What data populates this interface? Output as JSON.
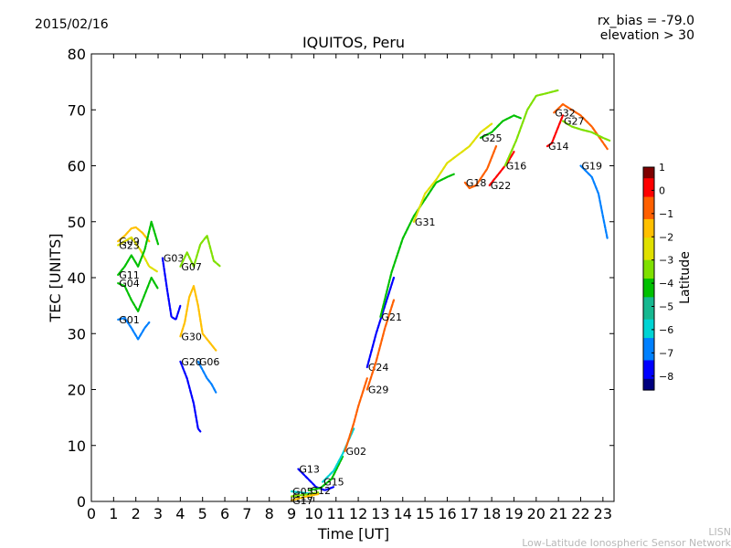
{
  "header": {
    "date": "2015/02/16",
    "rx_bias": "rx_bias = -79.0",
    "elevation": "elevation > 30"
  },
  "footer": {
    "credit_short": "LISN",
    "credit_long": "Low-Latitude Ionospheric Sensor Network"
  },
  "chart_data": {
    "type": "scatter",
    "title": "IQUITOS, Peru",
    "xlabel": "Time [UT]",
    "ylabel": "TEC [UNITS]",
    "xlim": [
      0,
      23.5
    ],
    "ylim": [
      0,
      80
    ],
    "xticks": [
      0,
      1,
      2,
      3,
      4,
      5,
      6,
      7,
      8,
      9,
      10,
      11,
      12,
      13,
      14,
      15,
      16,
      17,
      18,
      19,
      20,
      21,
      22,
      23
    ],
    "yticks": [
      0,
      10,
      20,
      30,
      40,
      50,
      60,
      70,
      80
    ],
    "grid": false,
    "colorbar": {
      "label": "Latitude",
      "range": [
        -8.6,
        1.0
      ],
      "ticks": [
        1,
        0,
        -1,
        -2,
        -3,
        -4,
        -5,
        -6,
        -7,
        -8
      ],
      "colormap": [
        "#00007f",
        "#0000ff",
        "#0080ff",
        "#00d4d4",
        "#17b890",
        "#00c000",
        "#7fe000",
        "#e0e000",
        "#ffc000",
        "#ff6000",
        "#ff0000",
        "#7f0000"
      ]
    },
    "series": [
      {
        "name": "G09",
        "lat": -2.0,
        "points": [
          [
            1.2,
            46.5
          ],
          [
            1.5,
            47.5
          ],
          [
            1.8,
            48.8
          ],
          [
            2.0,
            49.0
          ],
          [
            2.3,
            48.0
          ],
          [
            2.6,
            46.5
          ]
        ]
      },
      {
        "name": "G23",
        "lat": -2.6,
        "points": [
          [
            1.2,
            45.8
          ],
          [
            1.5,
            46.5
          ],
          [
            1.8,
            47.2
          ],
          [
            2.2,
            45.0
          ],
          [
            2.6,
            42.0
          ],
          [
            3.0,
            41.0
          ]
        ]
      },
      {
        "name": "G11",
        "lat": -4.0,
        "points": [
          [
            1.2,
            40.5
          ],
          [
            1.5,
            42.0
          ],
          [
            1.8,
            44.0
          ],
          [
            2.1,
            42.0
          ],
          [
            2.4,
            45.0
          ],
          [
            2.7,
            50.0
          ],
          [
            3.0,
            46.0
          ]
        ]
      },
      {
        "name": "G04",
        "lat": -4.6,
        "points": [
          [
            1.2,
            39.0
          ],
          [
            1.5,
            38.5
          ],
          [
            1.8,
            36.0
          ],
          [
            2.1,
            34.0
          ],
          [
            2.4,
            37.0
          ],
          [
            2.7,
            40.0
          ],
          [
            3.0,
            38.0
          ]
        ]
      },
      {
        "name": "G01",
        "lat": -6.6,
        "points": [
          [
            1.2,
            32.5
          ],
          [
            1.5,
            32.8
          ],
          [
            1.8,
            31.0
          ],
          [
            2.1,
            29.0
          ],
          [
            2.4,
            31.0
          ],
          [
            2.6,
            32.0
          ]
        ]
      },
      {
        "name": "G03",
        "lat": -7.4,
        "points": [
          [
            3.2,
            43.5
          ],
          [
            3.4,
            38.0
          ],
          [
            3.6,
            33.0
          ],
          [
            3.8,
            32.5
          ],
          [
            4.0,
            35.0
          ]
        ]
      },
      {
        "name": "G07",
        "lat": -3.4,
        "points": [
          [
            4.0,
            42.0
          ],
          [
            4.3,
            44.5
          ],
          [
            4.6,
            42.0
          ],
          [
            4.9,
            46.0
          ],
          [
            5.2,
            47.5
          ],
          [
            5.5,
            43.0
          ],
          [
            5.8,
            42.0
          ]
        ]
      },
      {
        "name": "G30",
        "lat": -2.0,
        "points": [
          [
            4.0,
            29.5
          ],
          [
            4.2,
            32.0
          ],
          [
            4.4,
            36.5
          ],
          [
            4.6,
            38.5
          ],
          [
            4.8,
            35.0
          ],
          [
            5.0,
            30.0
          ],
          [
            5.3,
            28.5
          ],
          [
            5.6,
            27.0
          ]
        ]
      },
      {
        "name": "G06",
        "lat": -6.5,
        "points": [
          [
            4.8,
            25.0
          ],
          [
            5.0,
            23.5
          ],
          [
            5.2,
            22.0
          ],
          [
            5.4,
            21.0
          ],
          [
            5.6,
            19.5
          ]
        ]
      },
      {
        "name": "G20",
        "lat": -8.0,
        "points": [
          [
            4.0,
            25.0
          ],
          [
            4.3,
            22.0
          ],
          [
            4.6,
            17.5
          ],
          [
            4.8,
            13.0
          ],
          [
            4.9,
            12.5
          ]
        ]
      },
      {
        "name": "G13",
        "lat": -8.0,
        "points": [
          [
            9.3,
            5.8
          ],
          [
            9.7,
            4.2
          ],
          [
            10.1,
            2.6
          ],
          [
            10.5,
            2.0
          ],
          [
            10.9,
            2.6
          ]
        ]
      },
      {
        "name": "G05",
        "lat": -5.6,
        "points": [
          [
            9.0,
            1.8
          ],
          [
            9.4,
            1.6
          ],
          [
            9.8,
            1.4
          ],
          [
            10.2,
            1.5
          ]
        ]
      },
      {
        "name": "G10",
        "lat": -3.0,
        "points": [
          [
            9.0,
            0.9
          ],
          [
            9.4,
            1.1
          ],
          [
            9.8,
            1.3
          ],
          [
            10.2,
            1.6
          ]
        ]
      },
      {
        "name": "G17",
        "lat": -1.6,
        "points": [
          [
            9.0,
            0.2
          ],
          [
            9.4,
            0.6
          ],
          [
            9.8,
            1.0
          ],
          [
            10.2,
            1.3
          ]
        ]
      },
      {
        "name": "G12",
        "lat": -4.6,
        "points": [
          [
            9.8,
            2.0
          ],
          [
            10.3,
            2.4
          ],
          [
            10.8,
            4.0
          ],
          [
            11.3,
            8.0
          ]
        ]
      },
      {
        "name": "G15",
        "lat": -5.6,
        "points": [
          [
            10.4,
            3.5
          ],
          [
            10.9,
            5.5
          ],
          [
            11.3,
            8.5
          ],
          [
            11.8,
            13.0
          ]
        ]
      },
      {
        "name": "G02",
        "lat": -0.6,
        "points": [
          [
            11.4,
            9.0
          ],
          [
            11.8,
            14.0
          ],
          [
            12.0,
            17.0
          ],
          [
            12.4,
            22.0
          ]
        ]
      },
      {
        "name": "G24",
        "lat": -8.0,
        "points": [
          [
            12.4,
            24.0
          ],
          [
            12.8,
            30.0
          ],
          [
            13.2,
            35.0
          ],
          [
            13.6,
            40.0
          ]
        ]
      },
      {
        "name": "G29",
        "lat": -1.0,
        "points": [
          [
            12.4,
            20.0
          ],
          [
            12.8,
            25.0
          ],
          [
            13.2,
            31.0
          ],
          [
            13.6,
            36.0
          ]
        ]
      },
      {
        "name": "G21",
        "lat": -4.0,
        "points": [
          [
            13.0,
            33.0
          ],
          [
            13.5,
            41.0
          ],
          [
            14.0,
            47.0
          ],
          [
            14.5,
            51.0
          ],
          [
            15.0,
            54.0
          ],
          [
            15.5,
            57.0
          ],
          [
            16.0,
            58.0
          ],
          [
            16.3,
            58.5
          ]
        ]
      },
      {
        "name": "G31",
        "lat": -2.2,
        "points": [
          [
            14.5,
            50.0
          ],
          [
            15.0,
            55.0
          ],
          [
            15.5,
            57.5
          ],
          [
            16.0,
            60.5
          ],
          [
            16.5,
            62.0
          ],
          [
            17.0,
            63.5
          ],
          [
            17.5,
            66.0
          ],
          [
            18.0,
            67.5
          ]
        ]
      },
      {
        "name": "G18",
        "lat": -0.6,
        "points": [
          [
            16.8,
            57.0
          ],
          [
            17.0,
            56.0
          ],
          [
            17.3,
            56.5
          ],
          [
            17.8,
            59.5
          ],
          [
            18.2,
            63.5
          ]
        ]
      },
      {
        "name": "G25",
        "lat": -4.6,
        "points": [
          [
            17.5,
            65.0
          ],
          [
            18.0,
            66.0
          ],
          [
            18.5,
            68.0
          ],
          [
            19.0,
            69.0
          ],
          [
            19.3,
            68.5
          ]
        ]
      },
      {
        "name": "G22",
        "lat": -0.2,
        "points": [
          [
            17.9,
            56.5
          ],
          [
            18.2,
            58.0
          ],
          [
            18.7,
            60.5
          ],
          [
            19.0,
            62.5
          ]
        ]
      },
      {
        "name": "G16",
        "lat": -3.4,
        "points": [
          [
            18.6,
            60.0
          ],
          [
            19.1,
            64.5
          ],
          [
            19.6,
            70.0
          ],
          [
            20.0,
            72.5
          ],
          [
            20.5,
            73.0
          ],
          [
            21.0,
            73.5
          ]
        ]
      },
      {
        "name": "G14",
        "lat": -0.2,
        "points": [
          [
            20.5,
            63.5
          ],
          [
            20.7,
            64.0
          ],
          [
            21.0,
            67.0
          ],
          [
            21.2,
            69.0
          ]
        ]
      },
      {
        "name": "G32",
        "lat": -1.0,
        "points": [
          [
            20.8,
            69.5
          ],
          [
            21.2,
            71.0
          ],
          [
            21.6,
            70.0
          ],
          [
            22.0,
            69.0
          ],
          [
            22.5,
            67.0
          ],
          [
            23.2,
            63.0
          ]
        ]
      },
      {
        "name": "G27",
        "lat": -3.4,
        "points": [
          [
            21.2,
            68.0
          ],
          [
            21.6,
            67.0
          ],
          [
            22.0,
            66.5
          ],
          [
            22.5,
            66.0
          ],
          [
            23.0,
            65.0
          ],
          [
            23.3,
            64.5
          ]
        ]
      },
      {
        "name": "G19",
        "lat": -7.0,
        "points": [
          [
            22.0,
            60.0
          ],
          [
            22.5,
            58.0
          ],
          [
            22.8,
            55.0
          ],
          [
            23.0,
            51.0
          ],
          [
            23.2,
            47.0
          ]
        ]
      }
    ]
  }
}
